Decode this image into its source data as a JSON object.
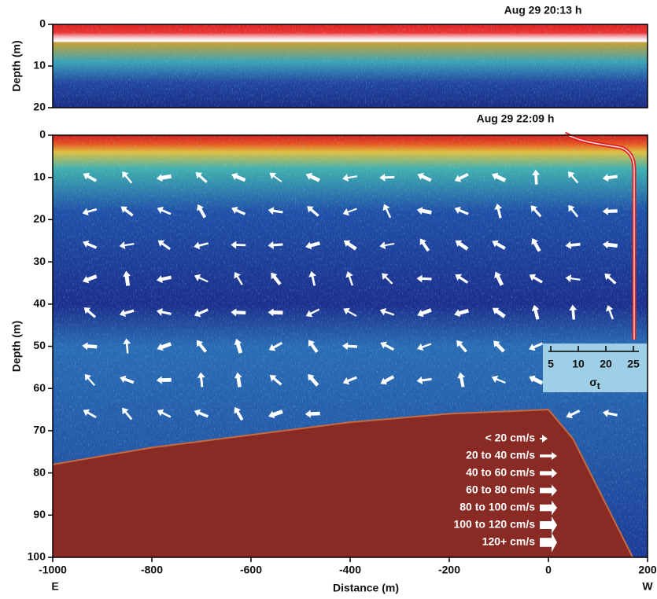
{
  "chart_data": [
    {
      "type": "echogram",
      "title": "Aug 29 20:13 h",
      "ylabel": "Depth (m)",
      "ylim": [
        0,
        20
      ],
      "yticks": [
        0,
        10,
        20
      ]
    },
    {
      "type": "echogram",
      "title": "Aug 29 22:09 h",
      "ylabel": "Depth (m)",
      "xlabel": "Distance (m)",
      "xlim": [
        -1000,
        200
      ],
      "xticks": [
        -1000,
        -800,
        -600,
        -400,
        -200,
        0,
        200
      ],
      "ylim": [
        0,
        100
      ],
      "yticks": [
        0,
        10,
        20,
        30,
        40,
        50,
        60,
        70,
        80,
        90,
        100
      ],
      "x_end_labels": [
        "E",
        "W"
      ],
      "seafloor": {
        "x": [
          -1000,
          -800,
          -600,
          -400,
          -200,
          0,
          50,
          170
        ],
        "depth": [
          78,
          74,
          71,
          68,
          66,
          65,
          72,
          100
        ]
      },
      "speed_legend": [
        "< 20 cm/s",
        "20 to 40 cm/s",
        "40 to 60 cm/s",
        "60 to 80 cm/s",
        "80 to 100 cm/s",
        "100 to 120 cm/s",
        "120+ cm/s"
      ],
      "sigma_t": {
        "ticks": [
          5,
          10,
          20,
          25
        ],
        "symbol": "σ",
        "subscript": "t"
      }
    }
  ]
}
